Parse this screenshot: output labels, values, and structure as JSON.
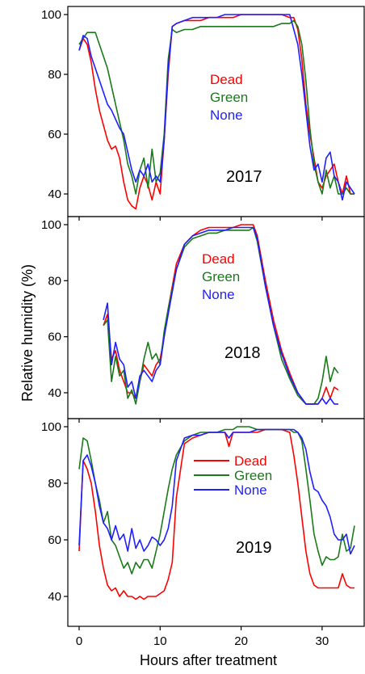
{
  "figure": {
    "ylabel": "Relative humidity (%)",
    "xlabel": "Hours after treatment"
  },
  "colors": {
    "dead": "#ff0000",
    "green": "#1a7a1a",
    "none": "#1f1fff",
    "axis": "#000000"
  },
  "chart_data": [
    {
      "type": "line",
      "annotation": "2017",
      "xlabel": "",
      "ylabel": "Relative humidity (%)",
      "xlim": [
        -2,
        35
      ],
      "ylim": [
        36,
        101
      ],
      "yticks": [
        40,
        60,
        80,
        100
      ],
      "xticks": [
        0,
        10,
        20,
        30
      ],
      "legend_position": "center",
      "series": [
        {
          "name": "Dead",
          "color": "#ff0000",
          "x": [
            0,
            0.5,
            1,
            1.5,
            2,
            2.5,
            3,
            3.5,
            4,
            4.5,
            5,
            5.5,
            6,
            6.5,
            7,
            7.5,
            8,
            8.5,
            9,
            9.5,
            10,
            10.5,
            11,
            11.5,
            12,
            13,
            14,
            15,
            16,
            17,
            18,
            19,
            20,
            21,
            22,
            23,
            24,
            25,
            26,
            26.5,
            27,
            27.5,
            28,
            28.5,
            29,
            29.5,
            30,
            30.5,
            31,
            31.5,
            32,
            32.5,
            33,
            33.5,
            34
          ],
          "y": [
            88,
            92,
            90,
            84,
            75,
            68,
            63,
            58,
            55,
            56,
            52,
            44,
            38,
            36,
            35,
            42,
            46,
            43,
            38,
            44,
            40,
            58,
            80,
            96,
            97,
            98,
            98,
            98,
            99,
            99,
            99,
            99,
            100,
            100,
            100,
            100,
            100,
            100,
            99,
            99,
            95,
            85,
            70,
            60,
            52,
            44,
            42,
            46,
            48,
            50,
            44,
            40,
            46,
            40,
            40
          ]
        },
        {
          "name": "Green",
          "color": "#1a7a1a",
          "x": [
            0,
            0.5,
            1,
            1.5,
            2,
            2.5,
            3,
            3.5,
            4,
            4.5,
            5,
            5.5,
            6,
            6.5,
            7,
            7.5,
            8,
            8.5,
            9,
            9.5,
            10,
            10.5,
            11,
            11.5,
            12,
            13,
            14,
            15,
            16,
            17,
            18,
            19,
            20,
            21,
            22,
            23,
            24,
            25,
            26,
            26.5,
            27,
            27.5,
            28,
            28.5,
            29,
            29.5,
            30,
            30.5,
            31,
            31.5,
            32,
            32.5,
            33,
            33.5,
            34
          ],
          "y": [
            90,
            92,
            94,
            94,
            94,
            90,
            86,
            82,
            76,
            70,
            64,
            58,
            50,
            46,
            40,
            48,
            52,
            42,
            55,
            44,
            47,
            60,
            85,
            95,
            94,
            95,
            95,
            96,
            96,
            96,
            96,
            96,
            96,
            96,
            96,
            96,
            96,
            97,
            97,
            98,
            96,
            90,
            78,
            62,
            50,
            44,
            40,
            48,
            42,
            46,
            40,
            40,
            42,
            40,
            40
          ]
        },
        {
          "name": "None",
          "color": "#1f1fff",
          "x": [
            0,
            0.5,
            1,
            1.5,
            2,
            2.5,
            3,
            3.5,
            4,
            4.5,
            5,
            5.5,
            6,
            6.5,
            7,
            7.5,
            8,
            8.5,
            9,
            9.5,
            10,
            10.5,
            11,
            11.5,
            12,
            13,
            14,
            15,
            16,
            17,
            18,
            19,
            20,
            21,
            22,
            23,
            24,
            25,
            26,
            26.5,
            27,
            27.5,
            28,
            28.5,
            29,
            29.5,
            30,
            30.5,
            31,
            31.5,
            32,
            32.5,
            33,
            33.5,
            34
          ],
          "y": [
            88,
            93,
            92,
            86,
            82,
            78,
            74,
            70,
            68,
            65,
            62,
            60,
            54,
            48,
            44,
            48,
            46,
            50,
            44,
            46,
            44,
            58,
            82,
            96,
            97,
            98,
            99,
            99,
            99,
            99,
            100,
            100,
            100,
            100,
            100,
            100,
            100,
            100,
            100,
            95,
            90,
            80,
            68,
            56,
            48,
            50,
            44,
            52,
            54,
            46,
            44,
            38,
            44,
            42,
            40
          ]
        }
      ]
    },
    {
      "type": "line",
      "annotation": "2018",
      "xlabel": "",
      "ylabel": "Relative humidity (%)",
      "xlim": [
        -2,
        35
      ],
      "ylim": [
        36,
        101
      ],
      "yticks": [
        40,
        60,
        80,
        100
      ],
      "xticks": [
        0,
        10,
        20,
        30
      ],
      "legend_position": "center-right",
      "series": [
        {
          "name": "Dead",
          "color": "#ff0000",
          "x": [
            3,
            3.5,
            4,
            4.5,
            5,
            5.5,
            6,
            6.5,
            7,
            7.5,
            8,
            8.5,
            9,
            9.5,
            10,
            10.5,
            11,
            12,
            13,
            14,
            15,
            16,
            17,
            18,
            19,
            20,
            21,
            21.5,
            22,
            23,
            24,
            25,
            26,
            27,
            28,
            28.5,
            29,
            29.5,
            30,
            30.5,
            31,
            31.5,
            32
          ],
          "y": [
            64,
            68,
            52,
            55,
            48,
            44,
            40,
            40,
            38,
            44,
            50,
            48,
            46,
            50,
            52,
            60,
            70,
            86,
            93,
            96,
            98,
            99,
            99,
            99,
            99,
            100,
            100,
            100,
            96,
            80,
            66,
            55,
            47,
            40,
            36,
            36,
            36,
            36,
            38,
            42,
            38,
            42,
            41
          ]
        },
        {
          "name": "Green",
          "color": "#1a7a1a",
          "x": [
            3,
            3.5,
            4,
            4.5,
            5,
            5.5,
            6,
            6.5,
            7,
            7.5,
            8,
            8.5,
            9,
            9.5,
            10,
            10.5,
            11,
            12,
            13,
            14,
            15,
            16,
            17,
            18,
            19,
            20,
            21,
            21.5,
            22,
            23,
            24,
            25,
            26,
            27,
            28,
            28.5,
            29,
            29.5,
            30,
            30.5,
            31,
            31.5,
            32
          ],
          "y": [
            64,
            66,
            44,
            53,
            46,
            48,
            38,
            41,
            36,
            44,
            52,
            58,
            52,
            54,
            50,
            62,
            70,
            84,
            92,
            95,
            96,
            97,
            97,
            98,
            98,
            98,
            98,
            99,
            94,
            78,
            64,
            52,
            45,
            39,
            36,
            36,
            36,
            38,
            44,
            53,
            44,
            49,
            47
          ]
        },
        {
          "name": "None",
          "color": "#1f1fff",
          "x": [
            3,
            3.5,
            4,
            4.5,
            5,
            5.5,
            6,
            6.5,
            7,
            7.5,
            8,
            8.5,
            9,
            9.5,
            10,
            10.5,
            11,
            12,
            13,
            14,
            15,
            16,
            17,
            18,
            19,
            20,
            21,
            21.5,
            22,
            23,
            24,
            25,
            26,
            27,
            28,
            28.5,
            29,
            29.5,
            30,
            30.5,
            31,
            31.5,
            32
          ],
          "y": [
            66,
            72,
            50,
            58,
            52,
            50,
            42,
            44,
            38,
            46,
            48,
            46,
            44,
            48,
            50,
            60,
            68,
            84,
            93,
            96,
            97,
            98,
            98,
            98,
            99,
            99,
            99,
            99,
            95,
            78,
            64,
            54,
            46,
            40,
            36,
            36,
            36,
            36,
            38,
            36,
            38,
            36,
            36
          ]
        }
      ]
    },
    {
      "type": "line",
      "annotation": "2019",
      "xlabel": "Hours after treatment",
      "ylabel": "Relative humidity (%)",
      "xlim": [
        -2,
        35
      ],
      "ylim": [
        36,
        101
      ],
      "yticks": [
        40,
        60,
        80,
        100
      ],
      "xticks": [
        0,
        10,
        20,
        30
      ],
      "legend_position": "top-center",
      "series": [
        {
          "name": "Dead",
          "color": "#ff0000",
          "x": [
            0,
            0.5,
            1,
            1.5,
            2,
            2.5,
            3,
            3.5,
            4,
            4.5,
            5,
            5.5,
            6,
            6.5,
            7,
            7.5,
            8,
            8.5,
            9,
            9.5,
            10,
            10.5,
            11,
            11.5,
            12,
            13,
            14,
            15,
            16,
            17,
            18,
            18.5,
            19,
            19.5,
            20,
            21,
            22,
            23,
            24,
            25,
            26,
            26.5,
            27,
            27.5,
            28,
            28.5,
            29,
            29.5,
            30,
            30.5,
            31,
            31.5,
            32,
            32.5,
            33,
            33.5,
            34
          ],
          "y": [
            56,
            88,
            85,
            80,
            70,
            58,
            50,
            44,
            42,
            43,
            40,
            42,
            40,
            40,
            39,
            40,
            39,
            40,
            40,
            40,
            41,
            42,
            46,
            52,
            75,
            94,
            96,
            97,
            98,
            98,
            98,
            93,
            98,
            98,
            98,
            98,
            98,
            99,
            99,
            99,
            98,
            90,
            80,
            68,
            56,
            48,
            44,
            43,
            43,
            43,
            43,
            43,
            43,
            48,
            44,
            43,
            43
          ]
        },
        {
          "name": "Green",
          "color": "#1a7a1a",
          "x": [
            0,
            0.5,
            1,
            1.5,
            2,
            2.5,
            3,
            3.5,
            4,
            4.5,
            5,
            5.5,
            6,
            6.5,
            7,
            7.5,
            8,
            8.5,
            9,
            9.5,
            10,
            10.5,
            11,
            11.5,
            12,
            13,
            14,
            15,
            16,
            17,
            18,
            18.5,
            19,
            19.5,
            20,
            21,
            22,
            23,
            24,
            25,
            26,
            26.5,
            27,
            27.5,
            28,
            28.5,
            29,
            29.5,
            30,
            30.5,
            31,
            31.5,
            32,
            32.5,
            33,
            33.5,
            34
          ],
          "y": [
            85,
            96,
            95,
            88,
            80,
            74,
            66,
            70,
            60,
            58,
            54,
            50,
            52,
            48,
            52,
            50,
            53,
            53,
            50,
            56,
            62,
            70,
            78,
            85,
            90,
            95,
            97,
            98,
            98,
            98,
            99,
            99,
            99,
            100,
            100,
            100,
            99,
            99,
            99,
            99,
            99,
            98,
            98,
            95,
            85,
            74,
            62,
            56,
            51,
            54,
            53,
            53,
            54,
            62,
            56,
            57,
            65
          ]
        },
        {
          "name": "None",
          "color": "#1f1fff",
          "x": [
            0,
            0.5,
            1,
            1.5,
            2,
            2.5,
            3,
            3.5,
            4,
            4.5,
            5,
            5.5,
            6,
            6.5,
            7,
            7.5,
            8,
            8.5,
            9,
            9.5,
            10,
            10.5,
            11,
            11.5,
            12,
            13,
            14,
            15,
            16,
            17,
            18,
            18.5,
            19,
            19.5,
            20,
            21,
            22,
            23,
            24,
            25,
            26,
            26.5,
            27,
            27.5,
            28,
            28.5,
            29,
            29.5,
            30,
            30.5,
            31,
            31.5,
            32,
            32.5,
            33,
            33.5,
            34
          ],
          "y": [
            58,
            88,
            90,
            86,
            80,
            72,
            66,
            64,
            60,
            65,
            60,
            62,
            56,
            64,
            57,
            60,
            56,
            58,
            61,
            60,
            58,
            60,
            64,
            72,
            88,
            96,
            97,
            97,
            98,
            98,
            98,
            96,
            98,
            98,
            98,
            98,
            99,
            99,
            99,
            99,
            99,
            99,
            98,
            96,
            92,
            84,
            78,
            77,
            74,
            72,
            68,
            62,
            60,
            60,
            62,
            55,
            58
          ]
        }
      ]
    }
  ]
}
